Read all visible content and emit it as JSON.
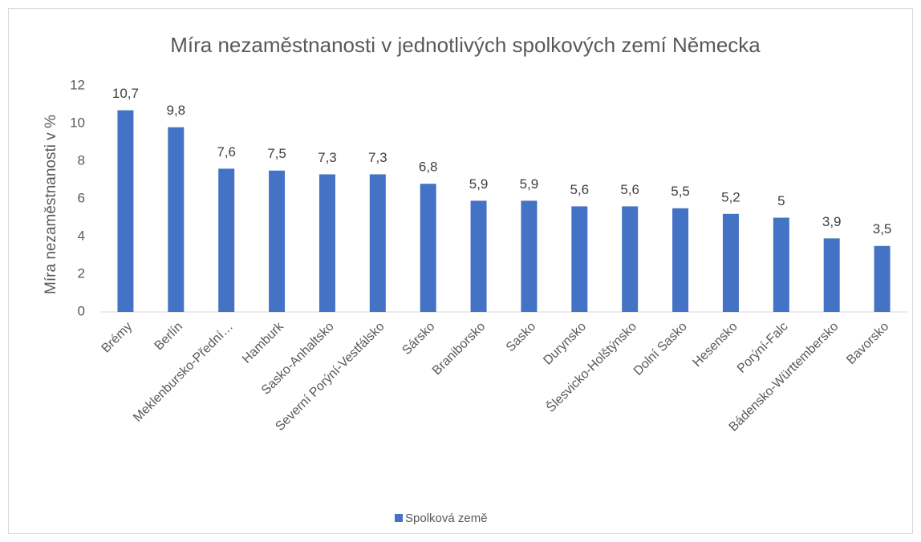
{
  "chart_data": {
    "type": "bar",
    "title": "Míra nezaměstnanosti v jednotlivých spolkových zemí Německa",
    "y_label": "Míra nezaměstnanosti v %",
    "categories": [
      "Brémy",
      "Berlín",
      "Meklenbursko-Přední…",
      "Hamburk",
      "Sasko-Anhaltsko",
      "Severní Porýní-Vestfálsko",
      "Sársko",
      "Braniborsko",
      "Sasko",
      "Durynsko",
      "Šlesvicko-Holštýnsko",
      "Dolní Sasko",
      "Hesensko",
      "Porýní-Falc",
      "Bádensko-Württembersko",
      "Bavorsko"
    ],
    "series": [
      {
        "name": "Spolková země",
        "color": "#4472c4",
        "values": [
          10.7,
          9.8,
          7.6,
          7.5,
          7.3,
          7.3,
          6.8,
          5.9,
          5.9,
          5.6,
          5.6,
          5.5,
          5.2,
          5,
          3.9,
          3.5
        ],
        "value_labels": [
          "10,7",
          "9,8",
          "7,6",
          "7,5",
          "7,3",
          "7,3",
          "6,8",
          "5,9",
          "5,9",
          "5,6",
          "5,6",
          "5,5",
          "5,2",
          "5",
          "3,9",
          "3,5"
        ]
      }
    ],
    "ylim": [
      0,
      12
    ],
    "yticks": [
      0,
      2,
      4,
      6,
      8,
      10,
      12
    ],
    "grid": false,
    "legend": "bottom"
  }
}
